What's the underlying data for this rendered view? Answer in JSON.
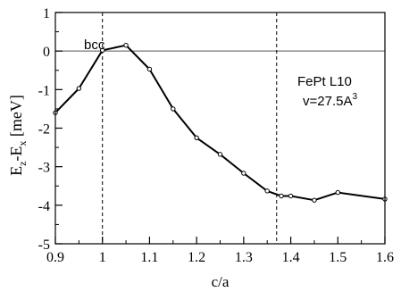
{
  "chart_data": {
    "type": "line",
    "title": "",
    "xlabel": "c/a",
    "ylabel_main": "E",
    "ylabel_sub1": "z",
    "ylabel_mid": "-E",
    "ylabel_sub2": "x",
    "ylabel_unit": " [meV]",
    "xlim": [
      0.9,
      1.6
    ],
    "ylim": [
      -5,
      1
    ],
    "xticks": [
      0.9,
      1.0,
      1.1,
      1.2,
      1.3,
      1.4,
      1.5,
      1.6
    ],
    "xtick_labels": [
      "0.9",
      "1",
      "1.1",
      "1.2",
      "1.3",
      "1.4",
      "1.5",
      "1.6"
    ],
    "yticks": [
      1,
      0,
      -1,
      -2,
      -3,
      -4,
      -5
    ],
    "ytick_labels": [
      "1",
      "0",
      "-1",
      "-2",
      "-3",
      "-4",
      "-5"
    ],
    "grid": false,
    "reference_lines": {
      "horizontal_y": 0,
      "vertical_dashed_x": [
        1.0,
        1.37
      ]
    },
    "annotations": {
      "bcc": "bcc",
      "material": "FePt L10",
      "volume_text": "v=27.5A",
      "volume_sup": "3"
    },
    "series": [
      {
        "color": "#000000",
        "x": [
          0.9,
          0.95,
          1.0,
          1.05,
          1.1,
          1.15,
          1.2,
          1.25,
          1.3,
          1.35,
          1.38,
          1.4,
          1.45,
          1.5,
          1.6
        ],
        "y": [
          -1.6,
          -0.97,
          0.02,
          0.15,
          -0.47,
          -1.5,
          -2.25,
          -2.68,
          -3.17,
          -3.63,
          -3.76,
          -3.76,
          -3.87,
          -3.67,
          -3.84
        ]
      }
    ]
  }
}
